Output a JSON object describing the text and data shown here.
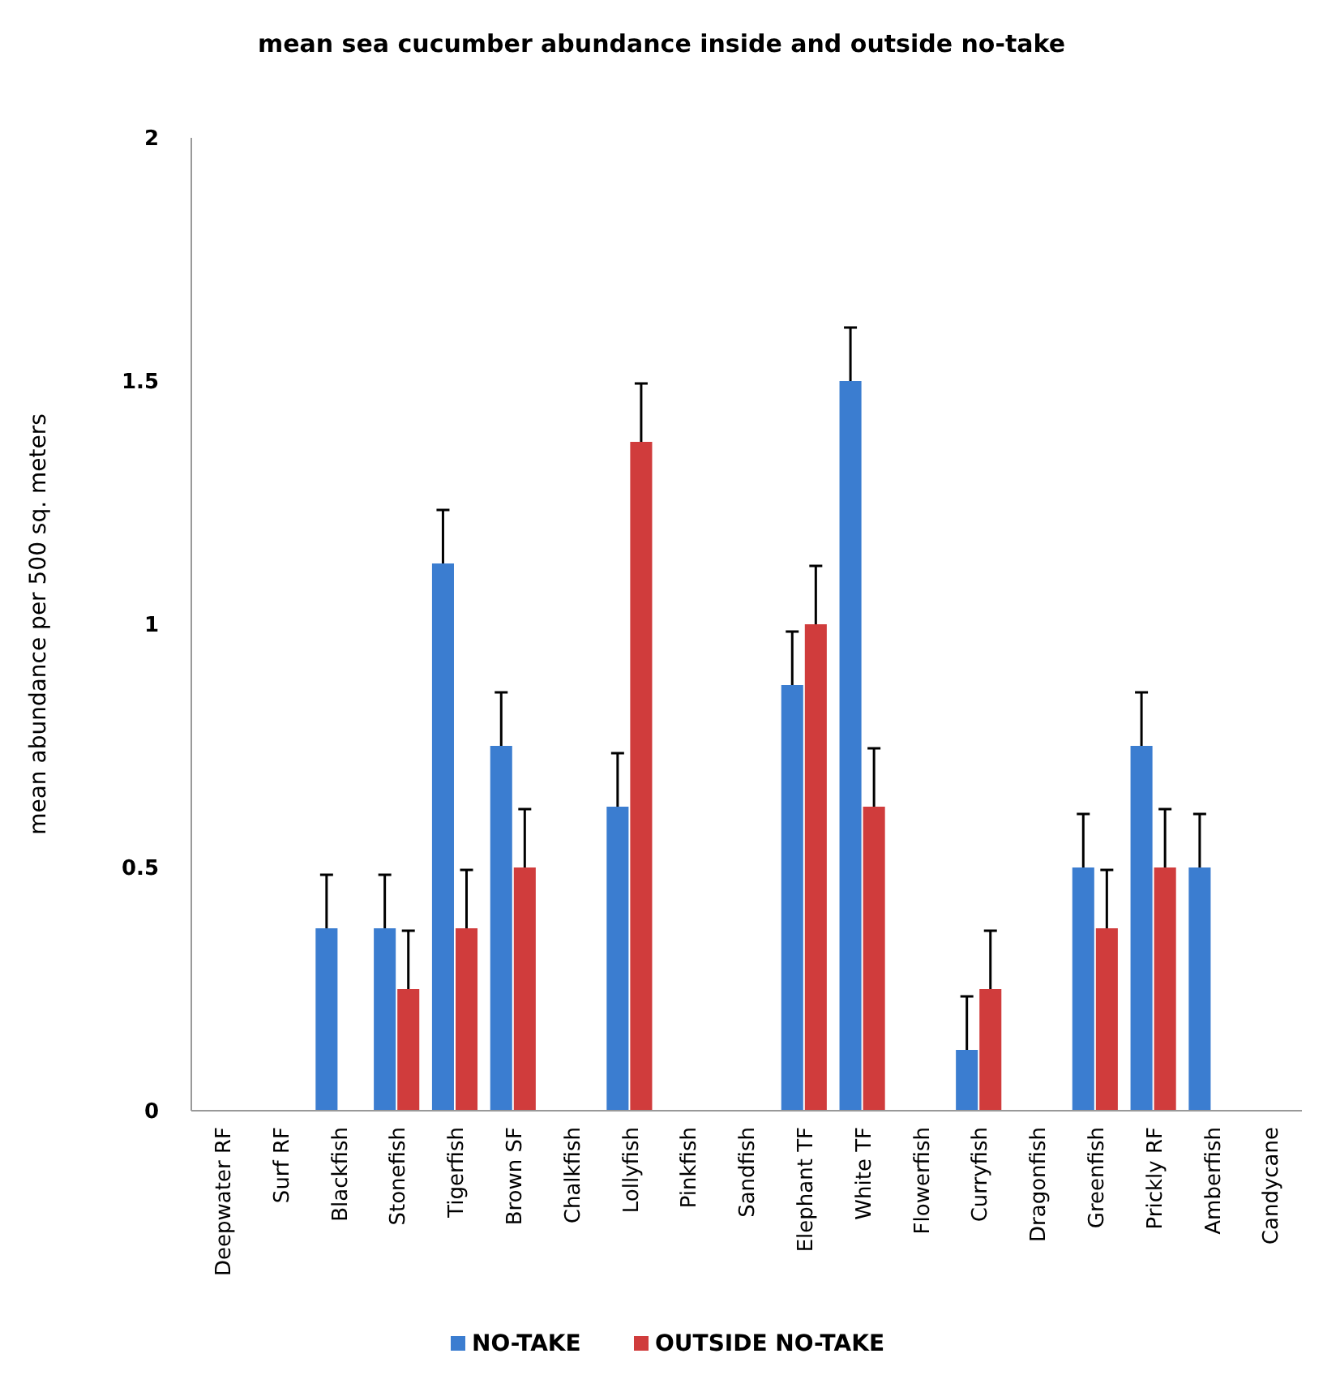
{
  "chart_data": {
    "type": "bar",
    "title": "mean sea cucumber abundance inside and outside no-take",
    "ylabel": "mean abundance per 500 sq. meters",
    "categories": [
      "Deepwater RF",
      "Surf RF",
      "Blackfish",
      "Stonefish",
      "Tigerfish",
      "Brown SF",
      "Chalkfish",
      "Lollyfish",
      "Pinkfish",
      "Sandfish",
      "Elephant TF",
      "White TF",
      "Flowerfish",
      "Curryfish",
      "Dragonfish",
      "Greenfish",
      "Prickly RF",
      "Amberfish",
      "Candycane"
    ],
    "series": [
      {
        "name": "NO-TAKE",
        "color": "#3b7dd0",
        "values": [
          null,
          null,
          0.375,
          0.375,
          1.125,
          0.75,
          null,
          0.625,
          null,
          null,
          0.875,
          1.5,
          null,
          0.125,
          null,
          0.5,
          0.75,
          0.5,
          null
        ],
        "errors": [
          null,
          null,
          [
            0.375,
            0.485
          ],
          [
            0.375,
            0.485
          ],
          [
            1.125,
            1.235
          ],
          [
            0.75,
            0.86
          ],
          null,
          [
            0.625,
            0.735
          ],
          null,
          null,
          [
            0.875,
            0.985
          ],
          [
            1.5,
            1.61
          ],
          null,
          [
            0.125,
            0.235
          ],
          null,
          [
            0.5,
            0.61
          ],
          [
            0.75,
            0.86
          ],
          [
            0.5,
            0.61
          ],
          null
        ]
      },
      {
        "name": "OUTSIDE NO-TAKE",
        "color": "#d03c3c",
        "values": [
          null,
          null,
          null,
          0.25,
          0.375,
          0.5,
          null,
          1.375,
          null,
          null,
          1.0,
          0.625,
          null,
          0.25,
          null,
          0.375,
          0.5,
          null,
          null
        ],
        "errors": [
          null,
          null,
          null,
          [
            0.25,
            0.37
          ],
          [
            0.375,
            0.495
          ],
          [
            0.5,
            0.62
          ],
          null,
          [
            1.375,
            1.495
          ],
          null,
          null,
          [
            1.0,
            1.12
          ],
          [
            0.625,
            0.745
          ],
          null,
          [
            0.25,
            0.37
          ],
          null,
          [
            0.375,
            0.495
          ],
          [
            0.5,
            0.62
          ],
          null,
          null
        ]
      }
    ],
    "ylim": [
      0,
      2
    ],
    "yticks": [
      0,
      0.5,
      1,
      1.5,
      2
    ],
    "grid": false,
    "legend": "bottom"
  }
}
